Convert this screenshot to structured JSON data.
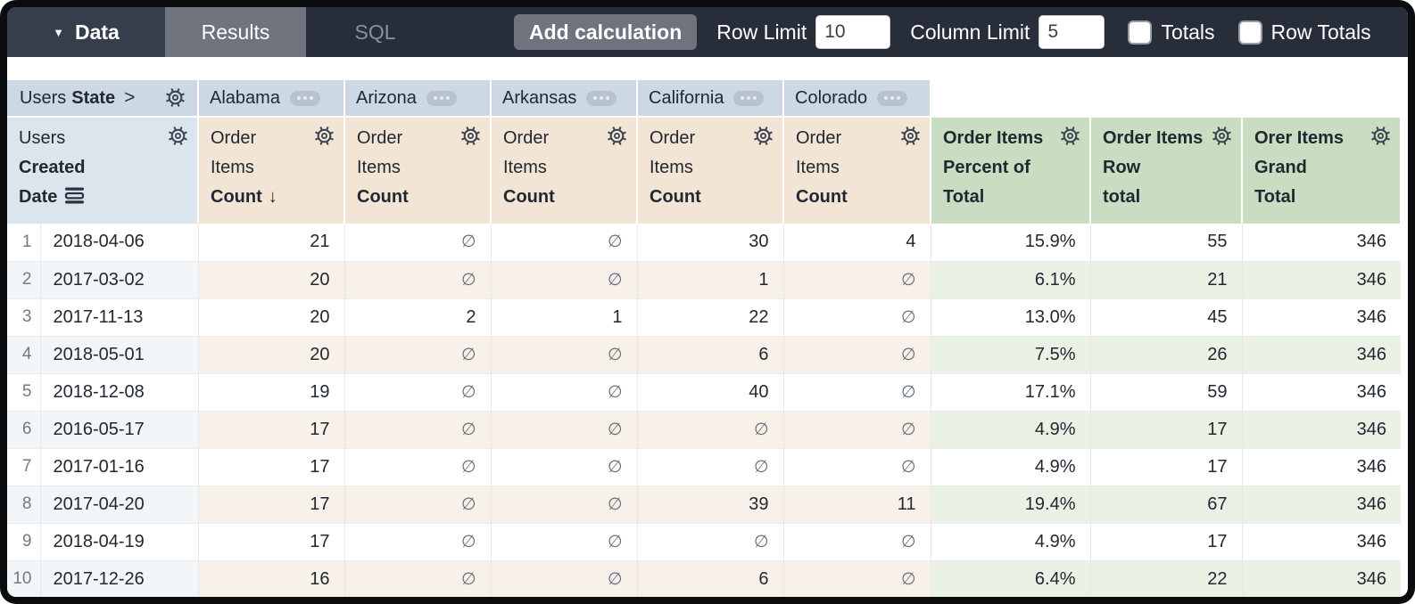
{
  "toolbar": {
    "data_label": "Data",
    "dropdown_icon": "▼",
    "tabs": [
      {
        "label": "Results",
        "active": true
      },
      {
        "label": "SQL",
        "active": false
      }
    ],
    "add_calculation_label": "Add calculation",
    "row_limit": {
      "label": "Row Limit",
      "value": "10"
    },
    "column_limit": {
      "label": "Column Limit",
      "value": "5"
    },
    "totals": {
      "label": "Totals",
      "checked": false
    },
    "row_totals": {
      "label": "Row Totals",
      "checked": false
    }
  },
  "pivot": {
    "dimension_view": "Users",
    "dimension_field": "State",
    "chevron": ">",
    "values": [
      "Alabama",
      "Arizona",
      "Arkansas",
      "California",
      "Colorado"
    ]
  },
  "columns": {
    "row_header": {
      "view": "Users",
      "field_line_1": "Created",
      "field_line_2": "Date"
    },
    "measures": [
      {
        "view_lines": [
          "Order",
          "Items"
        ],
        "field": "Count",
        "sorted": true
      },
      {
        "view_lines": [
          "Order",
          "Items"
        ],
        "field": "Count",
        "sorted": false
      },
      {
        "view_lines": [
          "Order",
          "Items"
        ],
        "field": "Count",
        "sorted": false
      },
      {
        "view_lines": [
          "Order",
          "Items"
        ],
        "field": "Count",
        "sorted": false
      },
      {
        "view_lines": [
          "Order",
          "Items"
        ],
        "field": "Count",
        "sorted": false
      }
    ],
    "calculations": [
      {
        "lines": [
          "Order Items",
          "Percent of",
          "Total"
        ]
      },
      {
        "lines": [
          "Order Items",
          "Row",
          "total"
        ]
      },
      {
        "lines": [
          "Orer Items",
          "Grand",
          "Total"
        ]
      }
    ]
  },
  "icons": {
    "sort_desc": "↓",
    "null_symbol": "∅",
    "gear": "settings-gear",
    "ellipsis": "ellipsis-menu",
    "date_fill": "date-fill-bars"
  },
  "table": {
    "rows": [
      {
        "num": "1",
        "date": "2018-04-06",
        "state_values": [
          "21",
          "∅",
          "∅",
          "30",
          "4"
        ],
        "calc_values": [
          "15.9%",
          "55",
          "346"
        ]
      },
      {
        "num": "2",
        "date": "2017-03-02",
        "state_values": [
          "20",
          "∅",
          "∅",
          "1",
          "∅"
        ],
        "calc_values": [
          "6.1%",
          "21",
          "346"
        ]
      },
      {
        "num": "3",
        "date": "2017-11-13",
        "state_values": [
          "20",
          "2",
          "1",
          "22",
          "∅"
        ],
        "calc_values": [
          "13.0%",
          "45",
          "346"
        ]
      },
      {
        "num": "4",
        "date": "2018-05-01",
        "state_values": [
          "20",
          "∅",
          "∅",
          "6",
          "∅"
        ],
        "calc_values": [
          "7.5%",
          "26",
          "346"
        ]
      },
      {
        "num": "5",
        "date": "2018-12-08",
        "state_values": [
          "19",
          "∅",
          "∅",
          "40",
          "∅"
        ],
        "calc_values": [
          "17.1%",
          "59",
          "346"
        ]
      },
      {
        "num": "6",
        "date": "2016-05-17",
        "state_values": [
          "17",
          "∅",
          "∅",
          "∅",
          "∅"
        ],
        "calc_values": [
          "4.9%",
          "17",
          "346"
        ]
      },
      {
        "num": "7",
        "date": "2017-01-16",
        "state_values": [
          "17",
          "∅",
          "∅",
          "∅",
          "∅"
        ],
        "calc_values": [
          "4.9%",
          "17",
          "346"
        ]
      },
      {
        "num": "8",
        "date": "2017-04-20",
        "state_values": [
          "17",
          "∅",
          "∅",
          "39",
          "11"
        ],
        "calc_values": [
          "19.4%",
          "67",
          "346"
        ]
      },
      {
        "num": "9",
        "date": "2018-04-19",
        "state_values": [
          "17",
          "∅",
          "∅",
          "∅",
          "∅"
        ],
        "calc_values": [
          "4.9%",
          "17",
          "346"
        ]
      },
      {
        "num": "10",
        "date": "2017-12-26",
        "state_values": [
          "16",
          "∅",
          "∅",
          "6",
          "∅"
        ],
        "calc_values": [
          "6.4%",
          "22",
          "346"
        ]
      }
    ]
  },
  "colors": {
    "topbar": "#272d39",
    "topbar_section": "#363d4b",
    "tab_active": "#6e737d",
    "pivot_header": "#ccd8e3",
    "dimension_header": "#dbe5ee",
    "measure_header": "#f2e5d6",
    "calc_header": "#c9ddc2",
    "stripe_dim": "#f2f6f9",
    "stripe_measure": "#f8f1e9",
    "stripe_calc": "#e9f2e5"
  }
}
